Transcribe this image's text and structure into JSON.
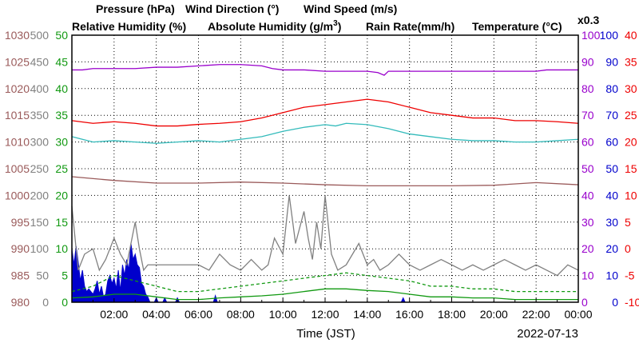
{
  "colors": {
    "pressure": "#9a5a5a",
    "wind_direction": "#808080",
    "wind_speed": "#119911",
    "humidity_rel": "#9900cc",
    "humidity_abs": "#33bbbb",
    "rain": "#0000cc",
    "temperature": "#ee0000"
  },
  "legend": {
    "pressure": "Pressure (hPa)",
    "wind_direction": "Wind Direction (°)",
    "wind_speed": "Wind Speed (m/s)",
    "humidity_rel": "Relative Humidity (%)",
    "humidity_abs_prefix": "Absolute Humidity (g/m",
    "humidity_abs_sup": "3",
    "humidity_abs_suffix": ")",
    "rain": "Rain Rate(mm/h)",
    "temperature": "Temperature (°C)",
    "scale_note": "x0.3"
  },
  "xlabel": "Time (JST)",
  "date": "2022-07-13",
  "chart_data": {
    "type": "line",
    "x_ticks": [
      "02:00",
      "04:00",
      "06:00",
      "08:00",
      "10:00",
      "12:00",
      "14:00",
      "16:00",
      "18:00",
      "20:00",
      "22:00",
      "00:00"
    ],
    "xlim_hours": [
      0,
      24
    ],
    "grid": true,
    "axes": {
      "pressure": {
        "ticks": [
          "1030",
          "1025",
          "1020",
          "1015",
          "1010",
          "1005",
          "1000",
          "995",
          "990",
          "985",
          "980"
        ],
        "ylim": [
          980,
          1030
        ]
      },
      "wind_direction": {
        "ticks": [
          "500",
          "450",
          "400",
          "350",
          "300",
          "250",
          "200",
          "150",
          "100",
          "50",
          "0"
        ],
        "ylim": [
          0,
          500
        ]
      },
      "wind_speed": {
        "ticks": [
          "50",
          "45",
          "40",
          "35",
          "30",
          "25",
          "20",
          "15",
          "10",
          "5",
          "0"
        ],
        "ylim": [
          0,
          50
        ]
      },
      "humidity": {
        "ticks": [
          "100",
          "90",
          "80",
          "70",
          "60",
          "50",
          "40",
          "30",
          "20",
          "10",
          "0"
        ],
        "ylim": [
          0,
          100
        ]
      },
      "rain": {
        "ticks": [
          "100",
          "90",
          "80",
          "70",
          "60",
          "50",
          "40",
          "30",
          "20",
          "10",
          "0"
        ],
        "ylim": [
          0,
          100
        ]
      },
      "temperature": {
        "ticks": [
          "40",
          "35",
          "30",
          "25",
          "20",
          "15",
          "10",
          "5",
          "0",
          "-5",
          "-10"
        ],
        "ylim": [
          -10,
          40
        ]
      }
    },
    "series": [
      {
        "key": "humidity_rel",
        "axis": "humidity",
        "x": [
          0,
          0.5,
          1,
          2,
          3,
          4,
          5,
          6,
          7,
          8,
          9,
          9.5,
          10,
          11,
          12,
          13,
          14,
          14.5,
          14.8,
          15,
          16,
          17,
          18,
          19,
          20,
          21,
          22,
          22.5,
          23,
          24
        ],
        "y": [
          87,
          87,
          87.5,
          87.5,
          87.5,
          88,
          88,
          88.5,
          89,
          89,
          88.5,
          87.5,
          87,
          87,
          86.5,
          86.5,
          86.5,
          86,
          85,
          86.5,
          86.5,
          86.5,
          86.5,
          86.5,
          86.5,
          86.5,
          86.5,
          87,
          87,
          87
        ]
      },
      {
        "key": "temperature",
        "axis": "temperature",
        "x": [
          0,
          1,
          2,
          3,
          4,
          5,
          6,
          7,
          8,
          9,
          10,
          11,
          12,
          13,
          14,
          15,
          16,
          17,
          18,
          19,
          20,
          21,
          22,
          23,
          24
        ],
        "y": [
          24,
          23.5,
          23.8,
          23.5,
          23,
          23,
          23.3,
          23.5,
          23.8,
          24.5,
          25.5,
          26.5,
          27,
          27.5,
          28,
          27.5,
          26.5,
          25.5,
          25,
          24.5,
          24.5,
          24,
          24,
          23.8,
          23.5
        ]
      },
      {
        "key": "humidity_abs",
        "axis": "humidity",
        "x": [
          0,
          0.5,
          1,
          2,
          3,
          4,
          5,
          6,
          7,
          8,
          9,
          10,
          11,
          12,
          12.5,
          13,
          14,
          15,
          16,
          17,
          18,
          19,
          20,
          21,
          22,
          23,
          24
        ],
        "y": [
          62,
          61,
          60,
          60.5,
          60,
          59.5,
          60,
          60.5,
          60,
          61,
          62,
          64,
          65.5,
          66.5,
          66,
          67,
          66.5,
          65,
          63,
          62,
          61,
          60.5,
          60.5,
          60,
          60,
          60.5,
          61
        ]
      },
      {
        "key": "pressure",
        "axis": "pressure",
        "x": [
          0,
          2,
          4,
          6,
          8,
          10,
          12,
          14,
          16,
          18,
          20,
          22,
          24
        ],
        "y": [
          1003.5,
          1002.8,
          1002.3,
          1002.3,
          1002.5,
          1002.3,
          1002.0,
          1001.8,
          1001.8,
          1001.8,
          1001.9,
          1002.4,
          1002.0
        ]
      },
      {
        "key": "wind_direction",
        "axis": "wind_direction",
        "x": [
          0,
          0.3,
          0.6,
          1,
          1.3,
          1.6,
          2,
          2.3,
          2.6,
          3,
          3.2,
          3.4,
          3.6,
          4,
          5,
          6,
          6.5,
          7,
          7.5,
          8,
          8.5,
          9,
          9.3,
          9.6,
          10,
          10.3,
          10.6,
          11,
          11.2,
          11.4,
          11.6,
          11.8,
          12,
          12.3,
          12.6,
          13,
          13.3,
          13.6,
          14,
          14.3,
          14.6,
          15,
          15.5,
          16,
          16.5,
          17,
          17.5,
          18,
          18.5,
          19,
          19.5,
          20,
          20.5,
          21,
          21.5,
          22,
          22.5,
          23,
          23.5,
          24
        ],
        "y": [
          180,
          60,
          90,
          100,
          60,
          80,
          120,
          90,
          70,
          150,
          100,
          60,
          70,
          70,
          70,
          70,
          60,
          90,
          70,
          60,
          80,
          60,
          70,
          120,
          90,
          200,
          110,
          170,
          120,
          80,
          150,
          100,
          200,
          90,
          60,
          70,
          90,
          110,
          70,
          80,
          60,
          70,
          90,
          70,
          60,
          70,
          80,
          70,
          60,
          70,
          60,
          70,
          80,
          70,
          60,
          70,
          60,
          50,
          70,
          60
        ]
      },
      {
        "key": "wind_speed_max",
        "axis": "wind_speed",
        "style": "dashed",
        "x": [
          0,
          1,
          2,
          3,
          4,
          5,
          6,
          7,
          8,
          9,
          10,
          11,
          12,
          13,
          14,
          15,
          16,
          17,
          18,
          19,
          20,
          21,
          22,
          23,
          24
        ],
        "y": [
          2,
          3,
          5,
          4,
          3,
          2,
          2,
          2.5,
          3,
          3.5,
          4,
          4.5,
          5,
          5.5,
          5,
          4.5,
          4,
          3,
          3,
          2.5,
          2.5,
          2,
          2,
          2,
          2
        ]
      },
      {
        "key": "wind_speed_avg",
        "axis": "wind_speed",
        "style": "solid",
        "x": [
          0,
          1,
          2,
          3,
          4,
          5,
          6,
          7,
          8,
          9,
          10,
          11,
          12,
          13,
          14,
          15,
          16,
          17,
          18,
          19,
          20,
          21,
          22,
          23,
          24
        ],
        "y": [
          0.8,
          1,
          1.5,
          1.5,
          1,
          0.5,
          0.5,
          0.8,
          1,
          1.2,
          1.5,
          2,
          2.5,
          2.5,
          2.2,
          2,
          1.5,
          1,
          1,
          0.8,
          0.8,
          0.5,
          0.5,
          0.5,
          0.5
        ]
      }
    ],
    "rain": {
      "axis": "rain",
      "x": [
        0,
        0.1,
        0.2,
        0.3,
        0.4,
        0.5,
        0.6,
        0.7,
        0.8,
        0.9,
        1.0,
        1.1,
        1.2,
        1.3,
        1.4,
        1.5,
        1.6,
        1.7,
        1.8,
        1.9,
        2.0,
        2.1,
        2.2,
        2.3,
        2.4,
        2.5,
        2.6,
        2.7,
        2.8,
        2.9,
        3.0,
        3.1,
        3.2,
        3.3,
        3.4,
        3.5,
        3.6,
        3.7
      ],
      "y": [
        20,
        14,
        21,
        15,
        8,
        12,
        6,
        4,
        5,
        4,
        3,
        5,
        8,
        3,
        6,
        2,
        3,
        8,
        10,
        7,
        9,
        5,
        12,
        4,
        14,
        10,
        16,
        12,
        22,
        16,
        18,
        14,
        13,
        7,
        6,
        3,
        2,
        0
      ]
    },
    "rain_small": [
      {
        "x": 4.0,
        "y": 2
      },
      {
        "x": 4.4,
        "y": 2
      },
      {
        "x": 5.0,
        "y": 2
      },
      {
        "x": 6.8,
        "y": 3
      },
      {
        "x": 15.7,
        "y": 2
      }
    ]
  }
}
